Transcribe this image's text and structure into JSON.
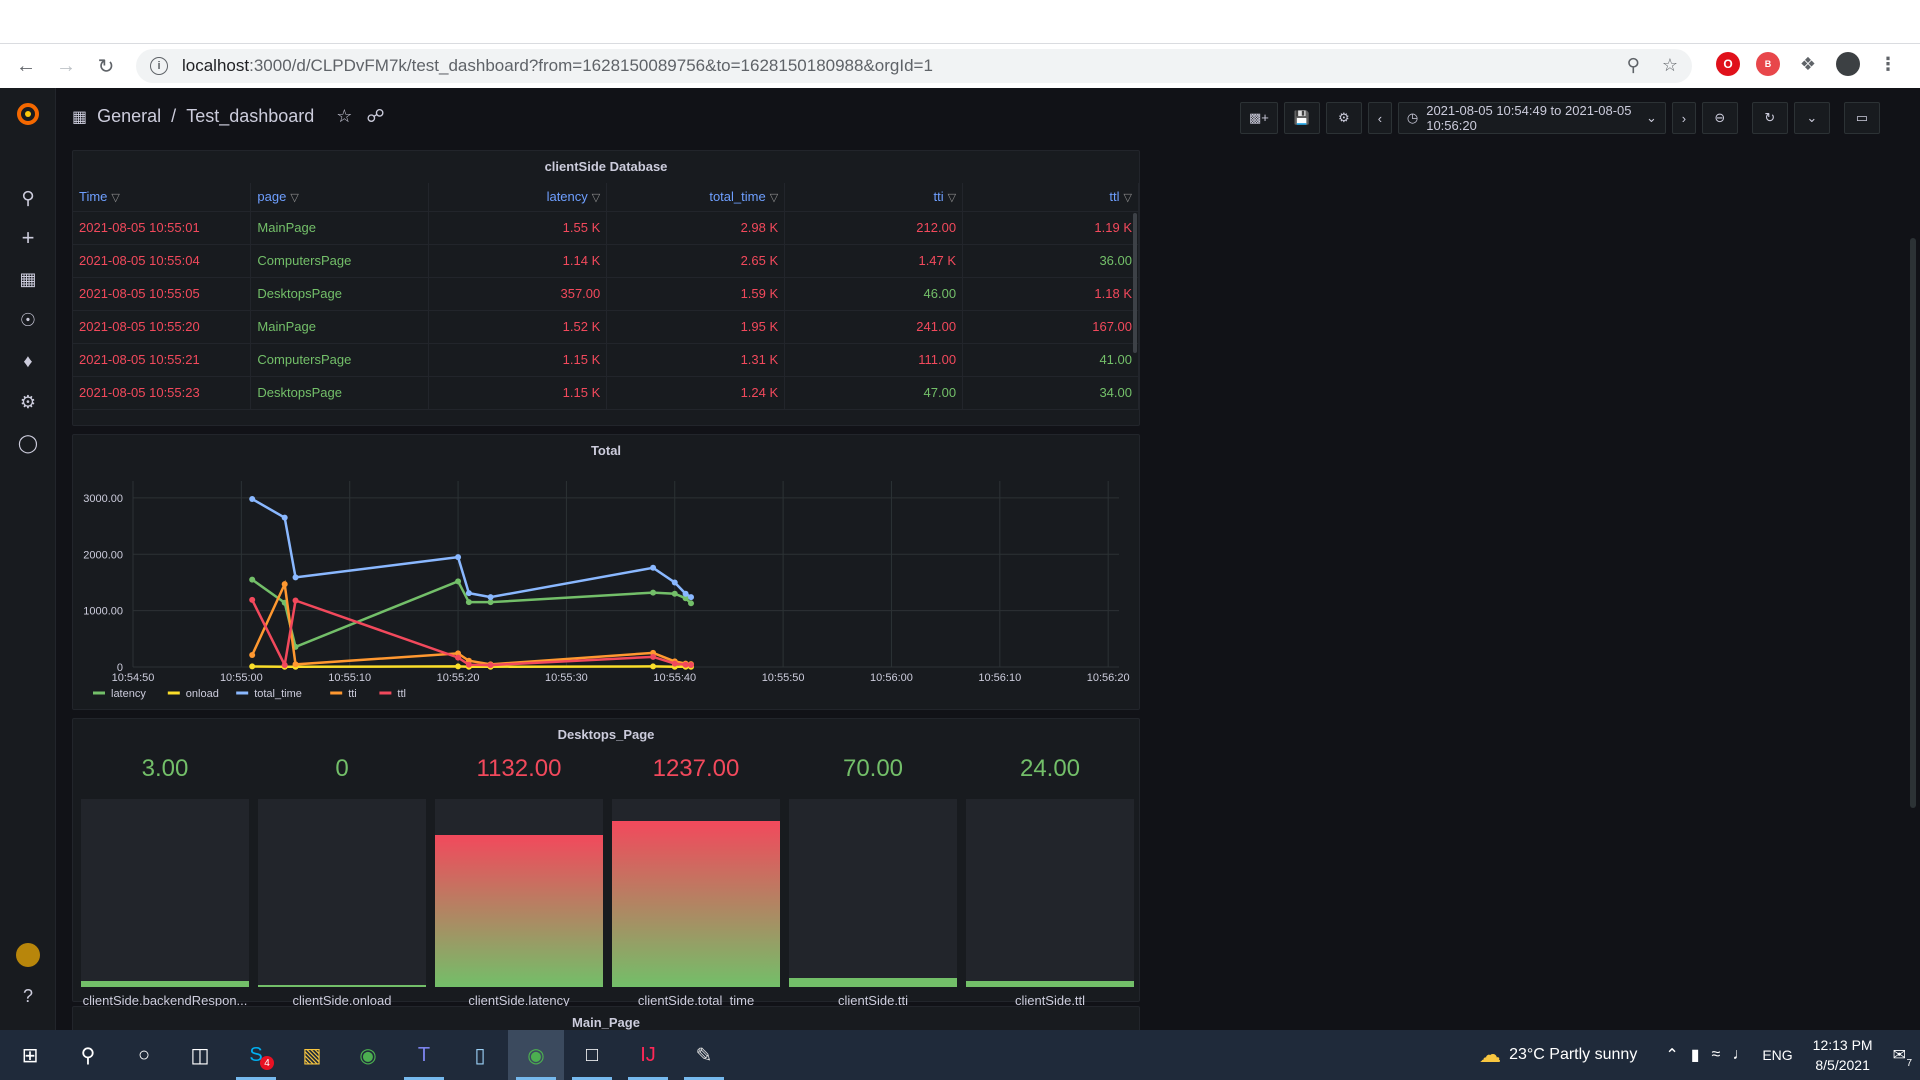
{
  "browser": {
    "url_host": "localhost",
    "url_path": ":3000/d/CLPDvFM7k/test_dashboard?from=1628150089756&to=1628150180988&orgId=1"
  },
  "breadcrumb": {
    "folder": "General",
    "separator": "/",
    "dashboard": "Test_dashboard"
  },
  "time_range": "2021-08-05 10:54:49 to 2021-08-05 10:56:20",
  "colors": {
    "accent_blue": "#6e9fff",
    "red": "#f2495c",
    "green": "#73bf69",
    "orange": "#ff9830",
    "yellow": "#fade2a",
    "light_blue": "#8ab8ff"
  },
  "table_panel": {
    "title": "clientSide Database",
    "columns": [
      "Time",
      "page",
      "latency",
      "total_time",
      "tti",
      "ttl"
    ],
    "rows": [
      {
        "time": "2021-08-05 10:55:01",
        "page": "MainPage",
        "latency": "1.55 K",
        "total_time": "2.98 K",
        "tti": "212.00",
        "ttl": "1.19 K",
        "c": [
          "red",
          "green",
          "red",
          "red",
          "red",
          "red"
        ]
      },
      {
        "time": "2021-08-05 10:55:04",
        "page": "ComputersPage",
        "latency": "1.14 K",
        "total_time": "2.65 K",
        "tti": "1.47 K",
        "ttl": "36.00",
        "c": [
          "red",
          "green",
          "red",
          "red",
          "red",
          "green"
        ]
      },
      {
        "time": "2021-08-05 10:55:05",
        "page": "DesktopsPage",
        "latency": "357.00",
        "total_time": "1.59 K",
        "tti": "46.00",
        "ttl": "1.18 K",
        "c": [
          "red",
          "green",
          "red",
          "red",
          "green",
          "red"
        ]
      },
      {
        "time": "2021-08-05 10:55:20",
        "page": "MainPage",
        "latency": "1.52 K",
        "total_time": "1.95 K",
        "tti": "241.00",
        "ttl": "167.00",
        "c": [
          "red",
          "green",
          "red",
          "red",
          "red",
          "red"
        ]
      },
      {
        "time": "2021-08-05 10:55:21",
        "page": "ComputersPage",
        "latency": "1.15 K",
        "total_time": "1.31 K",
        "tti": "111.00",
        "ttl": "41.00",
        "c": [
          "red",
          "green",
          "red",
          "red",
          "red",
          "green"
        ]
      },
      {
        "time": "2021-08-05 10:55:23",
        "page": "DesktopsPage",
        "latency": "1.15 K",
        "total_time": "1.24 K",
        "tti": "47.00",
        "ttl": "34.00",
        "c": [
          "red",
          "green",
          "red",
          "red",
          "green",
          "green"
        ]
      }
    ]
  },
  "chart_data": {
    "type": "line",
    "title": "Total",
    "x_ticks": [
      "10:54:50",
      "10:55:00",
      "10:55:10",
      "10:55:20",
      "10:55:30",
      "10:55:40",
      "10:55:50",
      "10:56:00",
      "10:56:10",
      "10:56:20"
    ],
    "y_ticks": [
      "0",
      "1000.00",
      "2000.00",
      "3000.00"
    ],
    "ylim": [
      0,
      3300
    ],
    "xlim_seconds": [
      -10,
      81
    ],
    "legend": [
      "latency",
      "onload",
      "total_time",
      "tti",
      "ttl"
    ],
    "series": [
      {
        "name": "latency",
        "color": "#73bf69",
        "points": [
          [
            1,
            1550
          ],
          [
            4,
            1140
          ],
          [
            5,
            357
          ],
          [
            20,
            1520
          ],
          [
            21,
            1150
          ],
          [
            23,
            1150
          ],
          [
            38,
            1320
          ],
          [
            40,
            1300
          ],
          [
            41,
            1220
          ],
          [
            41.5,
            1130
          ]
        ]
      },
      {
        "name": "onload",
        "color": "#fade2a",
        "points": [
          [
            1,
            10
          ],
          [
            4,
            5
          ],
          [
            5,
            5
          ],
          [
            20,
            10
          ],
          [
            21,
            5
          ],
          [
            23,
            5
          ],
          [
            38,
            10
          ],
          [
            40,
            5
          ],
          [
            41,
            5
          ],
          [
            41.5,
            5
          ]
        ]
      },
      {
        "name": "total_time",
        "color": "#8ab8ff",
        "points": [
          [
            1,
            2980
          ],
          [
            4,
            2650
          ],
          [
            5,
            1590
          ],
          [
            20,
            1950
          ],
          [
            21,
            1310
          ],
          [
            23,
            1240
          ],
          [
            38,
            1760
          ],
          [
            40,
            1500
          ],
          [
            41,
            1300
          ],
          [
            41.5,
            1240
          ]
        ]
      },
      {
        "name": "tti",
        "color": "#ff9830",
        "points": [
          [
            1,
            212
          ],
          [
            4,
            1470
          ],
          [
            5,
            46
          ],
          [
            20,
            241
          ],
          [
            21,
            111
          ],
          [
            23,
            47
          ],
          [
            38,
            250
          ],
          [
            40,
            100
          ],
          [
            41,
            60
          ],
          [
            41.5,
            50
          ]
        ]
      },
      {
        "name": "ttl",
        "color": "#f2495c",
        "points": [
          [
            1,
            1190
          ],
          [
            4,
            36
          ],
          [
            5,
            1180
          ],
          [
            20,
            167
          ],
          [
            21,
            41
          ],
          [
            23,
            34
          ],
          [
            38,
            180
          ],
          [
            40,
            60
          ],
          [
            41,
            40
          ],
          [
            41.5,
            35
          ]
        ]
      }
    ]
  },
  "gauges_panel": {
    "title": "Desktops_Page",
    "max": 1400,
    "items": [
      {
        "value": "3.00",
        "num": 3,
        "label": "clientSide.backendRespon...",
        "color": "#73bf69"
      },
      {
        "value": "0",
        "num": 0,
        "label": "clientSide.onload",
        "color": "#73bf69"
      },
      {
        "value": "1132.00",
        "num": 1132,
        "label": "clientSide.latency",
        "color": "#f2495c"
      },
      {
        "value": "1237.00",
        "num": 1237,
        "label": "clientSide.total_time",
        "color": "#f2495c"
      },
      {
        "value": "70.00",
        "num": 70,
        "label": "clientSide.tti",
        "color": "#73bf69"
      },
      {
        "value": "24.00",
        "num": 24,
        "label": "clientSide.ttl",
        "color": "#73bf69"
      }
    ]
  },
  "next_panel_title": "Main_Page",
  "taskbar": {
    "weather": "23°C  Partly sunny",
    "lang": "ENG",
    "time": "12:13 PM",
    "date": "8/5/2021",
    "notif_count": "7",
    "skype_badge": "4"
  }
}
